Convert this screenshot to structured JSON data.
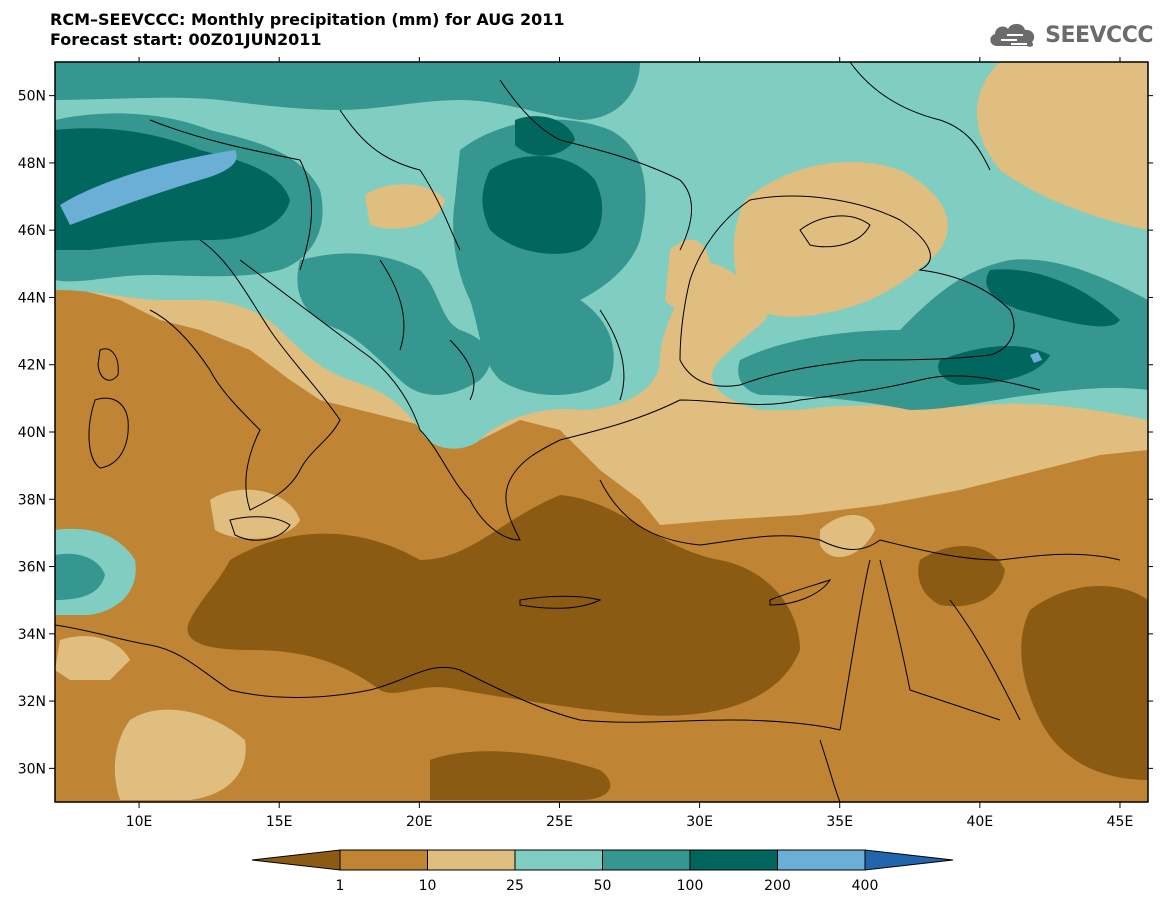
{
  "header": {
    "title": "RCM–SEEVCCC: Monthly precipitation (mm) for AUG 2011",
    "subtitle": "Forecast start: 00Z01JUN2011"
  },
  "logo": {
    "text": "SEEVCCC",
    "icon": "cloud-icon"
  },
  "axes": {
    "lon_ticks": [
      "10E",
      "15E",
      "20E",
      "25E",
      "30E",
      "35E",
      "40E",
      "45E"
    ],
    "lat_ticks": [
      "50N",
      "48N",
      "46N",
      "44N",
      "42N",
      "40N",
      "38N",
      "36N",
      "34N",
      "32N",
      "30N"
    ],
    "lon_range": [
      7,
      46
    ],
    "lat_range": [
      29,
      51
    ]
  },
  "legend": {
    "labels": [
      "1",
      "10",
      "25",
      "50",
      "100",
      "200",
      "400"
    ],
    "colors": [
      "#8b5a13",
      "#bf8434",
      "#dfbe7f",
      "#80cdc1",
      "#35978f",
      "#01665e",
      "#6baed6",
      "#2166ac"
    ]
  },
  "colors": {
    "ocean_dry": "#bf8434",
    "very_dry": "#8b5a13",
    "border": "#000000"
  }
}
